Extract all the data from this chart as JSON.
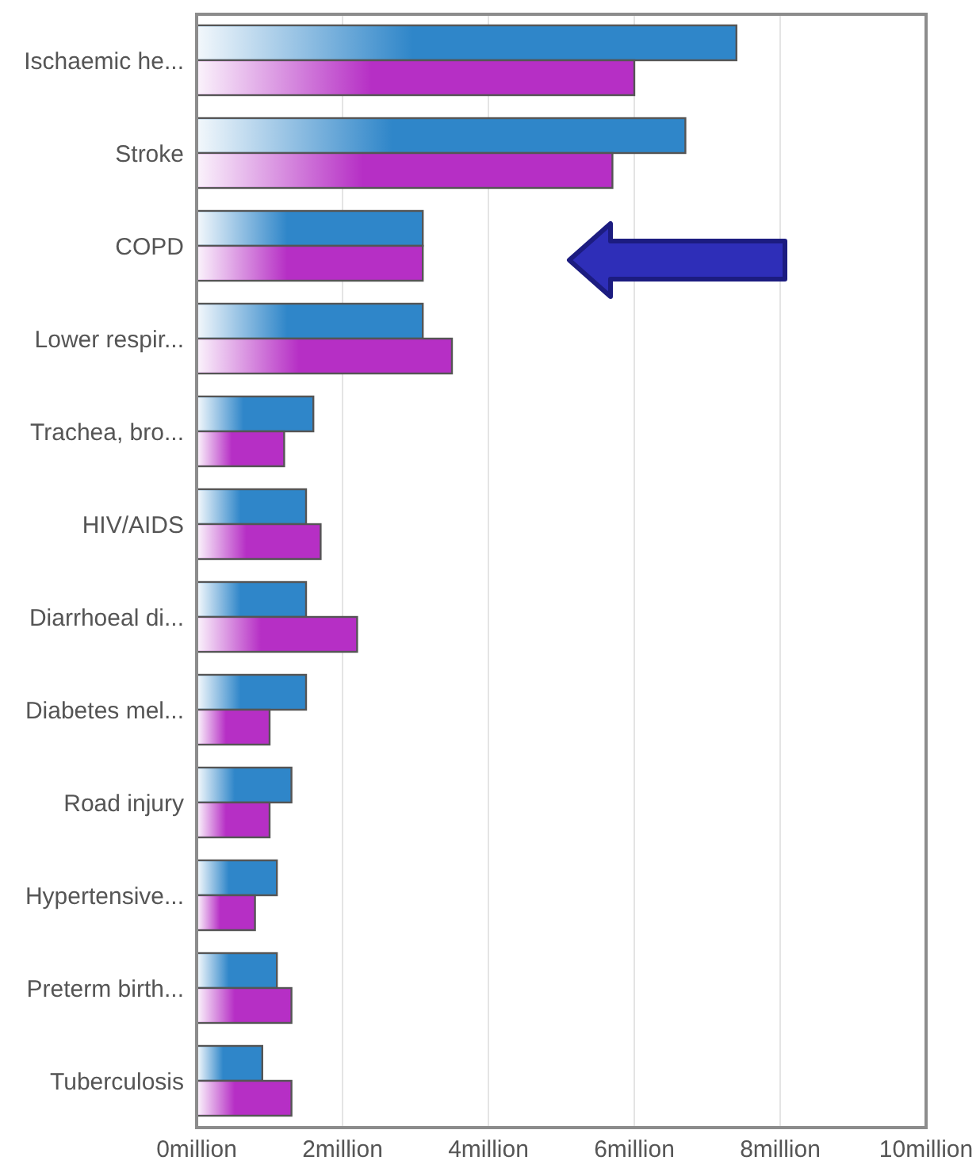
{
  "chart_data": {
    "type": "bar",
    "orientation": "horizontal",
    "categories": [
      "Ischaemic he...",
      "Stroke",
      "COPD",
      "Lower respir...",
      "Trachea, bro...",
      "HIV/AIDS",
      "Diarrhoeal di...",
      "Diabetes mel...",
      "Road injury",
      "Hypertensive...",
      "Preterm birth...",
      "Tuberculosis"
    ],
    "series": [
      {
        "color": "#2f86c9",
        "values": [
          7.4,
          6.7,
          3.1,
          3.1,
          1.6,
          1.5,
          1.5,
          1.5,
          1.3,
          1.1,
          1.1,
          0.9
        ]
      },
      {
        "color": "#b62fc5",
        "values": [
          6.0,
          5.7,
          3.1,
          3.5,
          1.2,
          1.7,
          2.2,
          1.0,
          1.0,
          0.8,
          1.3,
          1.3
        ]
      }
    ],
    "xlim": [
      0,
      10
    ],
    "xticks": [
      {
        "value": 0,
        "label": "0million"
      },
      {
        "value": 2,
        "label": "2million"
      },
      {
        "value": 4,
        "label": "4million"
      },
      {
        "value": 6,
        "label": "6million"
      },
      {
        "value": 8,
        "label": "8million"
      },
      {
        "value": 10,
        "label": "10million"
      }
    ],
    "grid": "x"
  }
}
